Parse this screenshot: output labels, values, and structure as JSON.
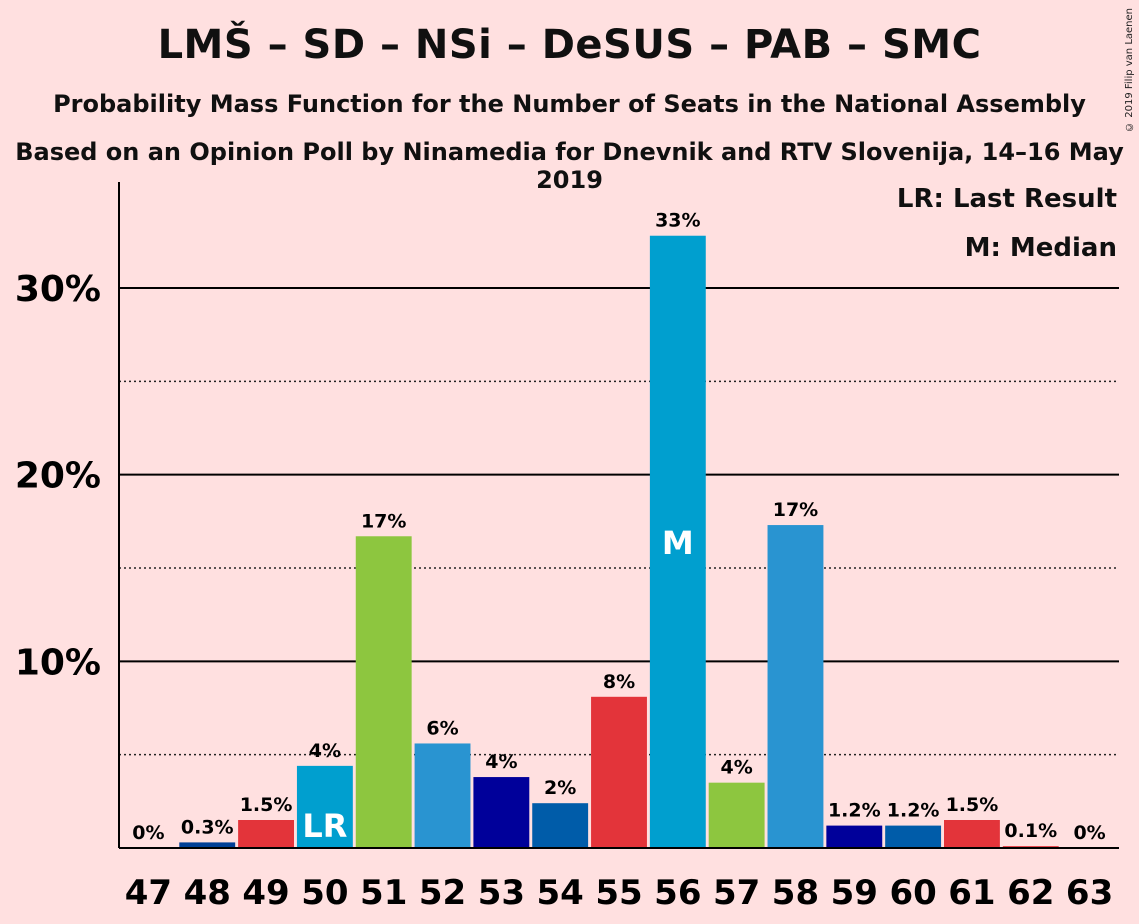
{
  "title": "LMŠ – SD – NSi – DeSUS – PAB – SMC",
  "subtitle": "Probability Mass Function for the Number of Seats in the National Assembly",
  "subtitle2": "Based on an Opinion Poll by Ninamedia for Dnevnik and RTV Slovenija, 14–16 May 2019",
  "copyright": "© 2019 Filip van Laenen",
  "legend": {
    "last_result": "LR: Last Result",
    "median": "M: Median"
  },
  "chart_data": {
    "type": "bar",
    "categories": [
      "47",
      "48",
      "49",
      "50",
      "51",
      "52",
      "53",
      "54",
      "55",
      "56",
      "57",
      "58",
      "59",
      "60",
      "61",
      "62",
      "63"
    ],
    "values": [
      0,
      0.3,
      1.5,
      4.4,
      16.7,
      5.6,
      3.8,
      2.4,
      8.1,
      32.8,
      3.5,
      17.3,
      1.2,
      1.2,
      1.5,
      0.1,
      0
    ],
    "labels": [
      "0%",
      "0.3%",
      "1.5%",
      "4%",
      "17%",
      "6%",
      "4%",
      "2%",
      "8%",
      "33%",
      "4%",
      "17%",
      "1.2%",
      "1.2%",
      "1.5%",
      "0.1%",
      "0%"
    ],
    "colors": [
      "#003f96",
      "#003f96",
      "#e3343a",
      "#009fcf",
      "#8dc63f",
      "#2994d1",
      "#00009a",
      "#005ca9",
      "#e3343a",
      "#009fcf",
      "#8dc63f",
      "#2994d1",
      "#00009a",
      "#005ca9",
      "#e3343a",
      "#e3343a",
      "#e3343a"
    ],
    "markers": {
      "50": "LR",
      "56": "M"
    },
    "ylim": [
      0,
      35
    ],
    "yticks": [
      10,
      20,
      30
    ],
    "ytick_labels": [
      "10%",
      "20%",
      "30%"
    ],
    "dotted_gridlines": [
      5,
      15,
      25
    ],
    "xlabel": "",
    "ylabel": "",
    "grid": true,
    "legend_position": "top-right"
  }
}
